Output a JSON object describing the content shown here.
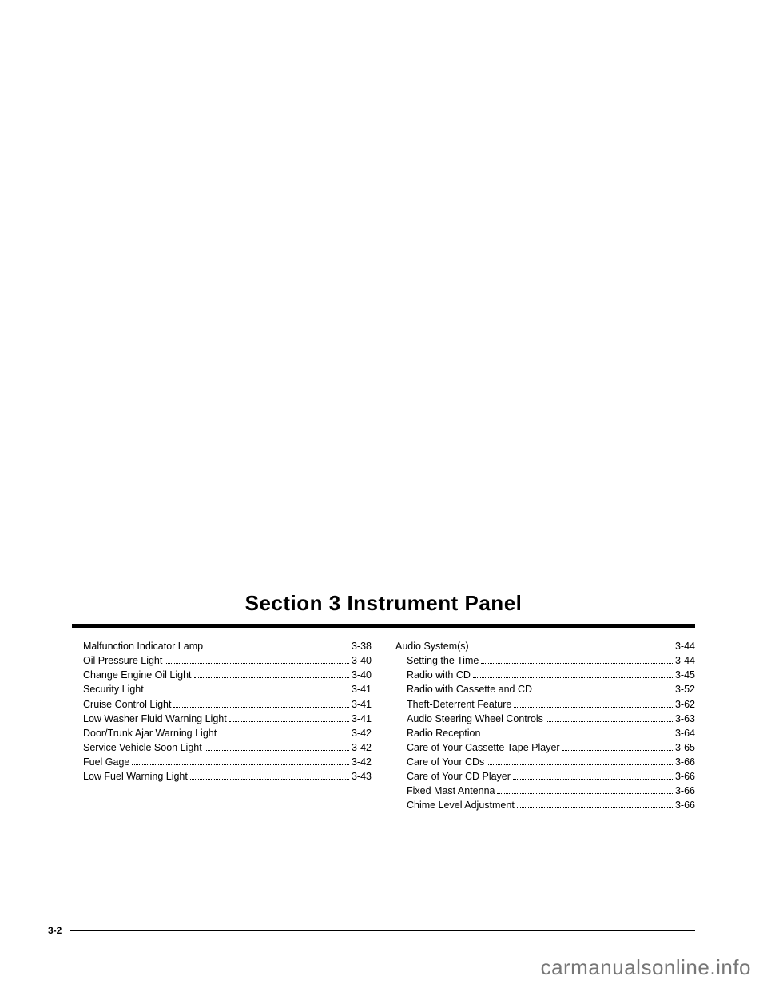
{
  "header": {
    "title": "Section 3     Instrument Panel"
  },
  "toc": {
    "left": [
      {
        "label": "Malfunction Indicator Lamp",
        "page": "3-38",
        "indent": true
      },
      {
        "label": "Oil Pressure Light",
        "page": "3-40",
        "indent": true
      },
      {
        "label": "Change Engine Oil Light",
        "page": "3-40",
        "indent": true
      },
      {
        "label": "Security Light",
        "page": "3-41",
        "indent": true
      },
      {
        "label": "Cruise Control Light",
        "page": "3-41",
        "indent": true
      },
      {
        "label": "Low Washer Fluid Warning Light",
        "page": "3-41",
        "indent": true
      },
      {
        "label": "Door/Trunk Ajar Warning Light",
        "page": "3-42",
        "indent": true
      },
      {
        "label": "Service Vehicle Soon Light",
        "page": "3-42",
        "indent": true
      },
      {
        "label": "Fuel Gage",
        "page": "3-42",
        "indent": true
      },
      {
        "label": "Low Fuel Warning Light",
        "page": "3-43",
        "indent": true
      }
    ],
    "right": [
      {
        "label": "Audio System(s)",
        "page": "3-44",
        "indent": false
      },
      {
        "label": "Setting the Time",
        "page": "3-44",
        "indent": true
      },
      {
        "label": "Radio with CD",
        "page": "3-45",
        "indent": true
      },
      {
        "label": "Radio with Cassette and CD",
        "page": "3-52",
        "indent": true
      },
      {
        "label": "Theft-Deterrent Feature",
        "page": "3-62",
        "indent": true
      },
      {
        "label": "Audio Steering Wheel Controls",
        "page": "3-63",
        "indent": true
      },
      {
        "label": "Radio Reception",
        "page": "3-64",
        "indent": true
      },
      {
        "label": "Care of Your Cassette Tape Player",
        "page": "3-65",
        "indent": true
      },
      {
        "label": "Care of Your CDs",
        "page": "3-66",
        "indent": true
      },
      {
        "label": "Care of Your CD Player",
        "page": "3-66",
        "indent": true
      },
      {
        "label": "Fixed Mast Antenna",
        "page": "3-66",
        "indent": true
      },
      {
        "label": "Chime Level Adjustment",
        "page": "3-66",
        "indent": true
      }
    ]
  },
  "footer": {
    "page_number": "3-2"
  },
  "watermark": "carmanualsonline.info",
  "colors": {
    "text": "#000000",
    "background": "#ffffff",
    "watermark": "#777777"
  }
}
